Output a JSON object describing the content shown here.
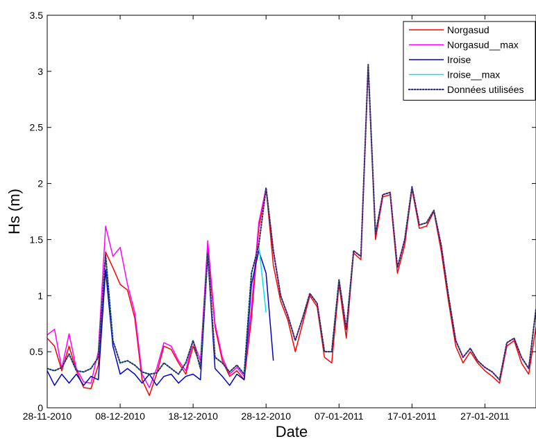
{
  "chart_data": {
    "type": "line",
    "xlabel": "Date",
    "ylabel": "Hs (m)",
    "ylim": [
      0,
      3.5
    ],
    "xlim": [
      "2010-11-28",
      "2011-02-03"
    ],
    "grid": false,
    "legend_position": "top-right",
    "x_ticks": [
      "2010-11-28",
      "2010-12-08",
      "2010-12-18",
      "2010-12-28",
      "2011-01-07",
      "2011-01-17",
      "2011-01-27"
    ],
    "x_tick_labels": [
      "28-11-2010",
      "08-12-2010",
      "18-12-2010",
      "28-12-2010",
      "07-01-2011",
      "17-01-2011",
      "27-01-2011"
    ],
    "y_ticks": [
      0,
      0.5,
      1,
      1.5,
      2,
      2.5,
      3,
      3.5
    ],
    "y_tick_labels": [
      "0",
      "0.5",
      "1",
      "1.5",
      "2",
      "2.5",
      "3",
      "3.5"
    ],
    "series": [
      {
        "name": "Norgasud",
        "color": "#ff0000",
        "style": "solid",
        "points": [
          [
            "2010-11-28",
            0.62
          ],
          [
            "2010-11-29",
            0.55
          ],
          [
            "2010-11-30",
            0.33
          ],
          [
            "2010-12-01",
            0.55
          ],
          [
            "2010-12-02",
            0.33
          ],
          [
            "2010-12-03",
            0.18
          ],
          [
            "2010-12-04",
            0.17
          ],
          [
            "2010-12-05",
            0.38
          ],
          [
            "2010-12-06",
            1.39
          ],
          [
            "2010-12-07",
            1.25
          ],
          [
            "2010-12-08",
            1.1
          ],
          [
            "2010-12-09",
            1.05
          ],
          [
            "2010-12-10",
            0.8
          ],
          [
            "2010-12-11",
            0.25
          ],
          [
            "2010-12-12",
            0.11
          ],
          [
            "2010-12-13",
            0.3
          ],
          [
            "2010-12-14",
            0.55
          ],
          [
            "2010-12-15",
            0.52
          ],
          [
            "2010-12-16",
            0.4
          ],
          [
            "2010-12-17",
            0.3
          ],
          [
            "2010-12-18",
            0.55
          ],
          [
            "2010-12-19",
            0.38
          ],
          [
            "2010-12-20",
            1.42
          ],
          [
            "2010-12-21",
            0.72
          ],
          [
            "2010-12-22",
            0.42
          ],
          [
            "2010-12-23",
            0.28
          ],
          [
            "2010-12-24",
            0.33
          ],
          [
            "2010-12-25",
            0.25
          ],
          [
            "2010-12-26",
            0.8
          ],
          [
            "2010-12-27",
            1.6
          ],
          [
            "2010-12-28",
            1.96
          ],
          [
            "2010-12-29",
            1.27
          ],
          [
            "2010-12-30",
            0.95
          ],
          [
            "2010-12-31",
            0.78
          ],
          [
            "2011-01-01",
            0.5
          ],
          [
            "2011-01-02",
            0.75
          ],
          [
            "2011-01-03",
            1.0
          ],
          [
            "2011-01-04",
            0.9
          ],
          [
            "2011-01-05",
            0.45
          ],
          [
            "2011-01-06",
            0.4
          ],
          [
            "2011-01-07",
            1.1
          ],
          [
            "2011-01-08",
            0.62
          ],
          [
            "2011-01-09",
            1.38
          ],
          [
            "2011-01-10",
            1.32
          ],
          [
            "2011-01-11",
            3.05
          ],
          [
            "2011-01-12",
            1.5
          ],
          [
            "2011-01-13",
            1.88
          ],
          [
            "2011-01-14",
            1.9
          ],
          [
            "2011-01-15",
            1.2
          ],
          [
            "2011-01-16",
            1.45
          ],
          [
            "2011-01-17",
            1.95
          ],
          [
            "2011-01-18",
            1.6
          ],
          [
            "2011-01-19",
            1.62
          ],
          [
            "2011-01-20",
            1.75
          ],
          [
            "2011-01-21",
            1.4
          ],
          [
            "2011-01-22",
            0.95
          ],
          [
            "2011-01-23",
            0.55
          ],
          [
            "2011-01-24",
            0.4
          ],
          [
            "2011-01-25",
            0.5
          ],
          [
            "2011-01-26",
            0.4
          ],
          [
            "2011-01-27",
            0.33
          ],
          [
            "2011-01-28",
            0.28
          ],
          [
            "2011-01-29",
            0.22
          ],
          [
            "2011-01-30",
            0.55
          ],
          [
            "2011-01-31",
            0.6
          ],
          [
            "2011-02-01",
            0.4
          ],
          [
            "2011-02-02",
            0.3
          ],
          [
            "2011-02-03",
            0.72
          ]
        ]
      },
      {
        "name": "Norgasud__max",
        "color": "#ff00ff",
        "style": "solid",
        "points": [
          [
            "2010-11-28",
            0.65
          ],
          [
            "2010-11-29",
            0.7
          ],
          [
            "2010-11-30",
            0.35
          ],
          [
            "2010-12-01",
            0.66
          ],
          [
            "2010-12-02",
            0.35
          ],
          [
            "2010-12-03",
            0.23
          ],
          [
            "2010-12-04",
            0.22
          ],
          [
            "2010-12-05",
            0.5
          ],
          [
            "2010-12-06",
            1.62
          ],
          [
            "2010-12-07",
            1.35
          ],
          [
            "2010-12-08",
            1.43
          ],
          [
            "2010-12-09",
            1.1
          ],
          [
            "2010-12-10",
            0.85
          ],
          [
            "2010-12-11",
            0.3
          ],
          [
            "2010-12-12",
            0.18
          ],
          [
            "2010-12-13",
            0.35
          ],
          [
            "2010-12-14",
            0.58
          ],
          [
            "2010-12-15",
            0.55
          ],
          [
            "2010-12-16",
            0.42
          ],
          [
            "2010-12-17",
            0.33
          ],
          [
            "2010-12-18",
            0.6
          ],
          [
            "2010-12-19",
            0.42
          ],
          [
            "2010-12-20",
            1.49
          ],
          [
            "2010-12-21",
            0.75
          ],
          [
            "2010-12-22",
            0.45
          ],
          [
            "2010-12-23",
            0.3
          ],
          [
            "2010-12-24",
            0.36
          ],
          [
            "2010-12-25",
            0.28
          ],
          [
            "2010-12-26",
            0.9
          ],
          [
            "2010-12-27",
            1.65
          ],
          [
            "2010-12-28",
            1.96
          ],
          [
            "2010-12-29",
            1.4
          ],
          [
            "2010-12-30",
            1.0
          ],
          [
            "2010-12-31",
            0.82
          ],
          [
            "2011-01-01",
            0.6
          ],
          [
            "2011-01-02",
            0.8
          ],
          [
            "2011-01-03",
            1.02
          ],
          [
            "2011-01-04",
            0.93
          ],
          [
            "2011-01-05",
            0.5
          ],
          [
            "2011-01-06",
            0.5
          ],
          [
            "2011-01-07",
            1.14
          ],
          [
            "2011-01-08",
            0.7
          ],
          [
            "2011-01-09",
            1.4
          ],
          [
            "2011-01-10",
            1.35
          ],
          [
            "2011-01-11",
            3.06
          ],
          [
            "2011-01-12",
            1.55
          ],
          [
            "2011-01-13",
            1.9
          ],
          [
            "2011-01-14",
            1.92
          ],
          [
            "2011-01-15",
            1.25
          ],
          [
            "2011-01-16",
            1.5
          ],
          [
            "2011-01-17",
            1.97
          ],
          [
            "2011-01-18",
            1.63
          ],
          [
            "2011-01-19",
            1.65
          ],
          [
            "2011-01-20",
            1.76
          ],
          [
            "2011-01-21",
            1.45
          ],
          [
            "2011-01-22",
            1.0
          ],
          [
            "2011-01-23",
            0.6
          ],
          [
            "2011-01-24",
            0.45
          ],
          [
            "2011-01-25",
            0.53
          ],
          [
            "2011-01-26",
            0.42
          ],
          [
            "2011-01-27",
            0.36
          ],
          [
            "2011-01-28",
            0.32
          ],
          [
            "2011-01-29",
            0.25
          ],
          [
            "2011-01-30",
            0.58
          ],
          [
            "2011-01-31",
            0.62
          ],
          [
            "2011-02-01",
            0.45
          ],
          [
            "2011-02-02",
            0.35
          ],
          [
            "2011-02-03",
            0.88
          ]
        ]
      },
      {
        "name": "Iroise",
        "color": "#0000cc",
        "style": "solid",
        "points": [
          [
            "2010-11-28",
            0.33
          ],
          [
            "2010-11-29",
            0.2
          ],
          [
            "2010-11-30",
            0.3
          ],
          [
            "2010-12-01",
            0.22
          ],
          [
            "2010-12-02",
            0.3
          ],
          [
            "2010-12-03",
            0.2
          ],
          [
            "2010-12-04",
            0.28
          ],
          [
            "2010-12-05",
            0.25
          ],
          [
            "2010-12-06",
            1.23
          ],
          [
            "2010-12-07",
            0.55
          ],
          [
            "2010-12-08",
            0.3
          ],
          [
            "2010-12-09",
            0.35
          ],
          [
            "2010-12-10",
            0.3
          ],
          [
            "2010-12-11",
            0.22
          ],
          [
            "2010-12-12",
            0.3
          ],
          [
            "2010-12-13",
            0.2
          ],
          [
            "2010-12-14",
            0.28
          ],
          [
            "2010-12-15",
            0.3
          ],
          [
            "2010-12-16",
            0.22
          ],
          [
            "2010-12-17",
            0.28
          ],
          [
            "2010-12-18",
            0.3
          ],
          [
            "2010-12-19",
            0.25
          ],
          [
            "2010-12-20",
            1.36
          ],
          [
            "2010-12-21",
            0.35
          ],
          [
            "2010-12-22",
            0.28
          ],
          [
            "2010-12-23",
            0.2
          ],
          [
            "2010-12-24",
            0.3
          ],
          [
            "2010-12-25",
            0.25
          ],
          [
            "2010-12-26",
            1.1
          ],
          [
            "2010-12-27",
            1.4
          ],
          [
            "2010-12-28",
            1.2
          ],
          [
            "2010-12-29",
            0.42
          ]
        ]
      },
      {
        "name": "Iroise__max",
        "color": "#00e5ee",
        "style": "solid",
        "points": [
          [
            "2010-11-28",
            0.35
          ],
          [
            "2010-11-29",
            0.33
          ],
          [
            "2010-11-30",
            0.36
          ],
          [
            "2010-12-01",
            0.48
          ],
          [
            "2010-12-02",
            0.33
          ],
          [
            "2010-12-03",
            0.32
          ],
          [
            "2010-12-04",
            0.35
          ],
          [
            "2010-12-05",
            0.45
          ],
          [
            "2010-12-06",
            1.36
          ],
          [
            "2010-12-07",
            0.6
          ],
          [
            "2010-12-08",
            0.4
          ],
          [
            "2010-12-09",
            0.42
          ],
          [
            "2010-12-10",
            0.38
          ],
          [
            "2010-12-11",
            0.32
          ],
          [
            "2010-12-12",
            0.3
          ],
          [
            "2010-12-13",
            0.31
          ],
          [
            "2010-12-14",
            0.4
          ],
          [
            "2010-12-15",
            0.35
          ],
          [
            "2010-12-16",
            0.3
          ],
          [
            "2010-12-17",
            0.4
          ],
          [
            "2010-12-18",
            0.6
          ],
          [
            "2010-12-19",
            0.35
          ],
          [
            "2010-12-20",
            1.37
          ],
          [
            "2010-12-21",
            0.45
          ],
          [
            "2010-12-22",
            0.4
          ],
          [
            "2010-12-23",
            0.32
          ],
          [
            "2010-12-24",
            0.38
          ],
          [
            "2010-12-25",
            0.3
          ],
          [
            "2010-12-26",
            1.2
          ],
          [
            "2010-12-27",
            1.45
          ],
          [
            "2010-12-28",
            0.85
          ]
        ]
      },
      {
        "name": "Données utilisées",
        "color": "#333366",
        "style": "dotted",
        "points": [
          [
            "2010-11-28",
            0.35
          ],
          [
            "2010-11-29",
            0.33
          ],
          [
            "2010-11-30",
            0.36
          ],
          [
            "2010-12-01",
            0.48
          ],
          [
            "2010-12-02",
            0.33
          ],
          [
            "2010-12-03",
            0.32
          ],
          [
            "2010-12-04",
            0.35
          ],
          [
            "2010-12-05",
            0.45
          ],
          [
            "2010-12-06",
            1.36
          ],
          [
            "2010-12-07",
            0.6
          ],
          [
            "2010-12-08",
            0.4
          ],
          [
            "2010-12-09",
            0.42
          ],
          [
            "2010-12-10",
            0.38
          ],
          [
            "2010-12-11",
            0.32
          ],
          [
            "2010-12-12",
            0.3
          ],
          [
            "2010-12-13",
            0.31
          ],
          [
            "2010-12-14",
            0.4
          ],
          [
            "2010-12-15",
            0.35
          ],
          [
            "2010-12-16",
            0.3
          ],
          [
            "2010-12-17",
            0.4
          ],
          [
            "2010-12-18",
            0.6
          ],
          [
            "2010-12-19",
            0.35
          ],
          [
            "2010-12-20",
            1.37
          ],
          [
            "2010-12-21",
            0.45
          ],
          [
            "2010-12-22",
            0.4
          ],
          [
            "2010-12-23",
            0.32
          ],
          [
            "2010-12-24",
            0.38
          ],
          [
            "2010-12-25",
            0.3
          ],
          [
            "2010-12-26",
            1.2
          ],
          [
            "2010-12-27",
            1.45
          ],
          [
            "2010-12-28",
            1.96
          ],
          [
            "2010-12-29",
            1.4
          ],
          [
            "2010-12-30",
            1.0
          ],
          [
            "2010-12-31",
            0.82
          ],
          [
            "2011-01-01",
            0.6
          ],
          [
            "2011-01-02",
            0.8
          ],
          [
            "2011-01-03",
            1.02
          ],
          [
            "2011-01-04",
            0.93
          ],
          [
            "2011-01-05",
            0.5
          ],
          [
            "2011-01-06",
            0.5
          ],
          [
            "2011-01-07",
            1.14
          ],
          [
            "2011-01-08",
            0.7
          ],
          [
            "2011-01-09",
            1.4
          ],
          [
            "2011-01-10",
            1.35
          ],
          [
            "2011-01-11",
            3.06
          ],
          [
            "2011-01-12",
            1.55
          ],
          [
            "2011-01-13",
            1.9
          ],
          [
            "2011-01-14",
            1.92
          ],
          [
            "2011-01-15",
            1.25
          ],
          [
            "2011-01-16",
            1.5
          ],
          [
            "2011-01-17",
            1.97
          ],
          [
            "2011-01-18",
            1.63
          ],
          [
            "2011-01-19",
            1.65
          ],
          [
            "2011-01-20",
            1.76
          ],
          [
            "2011-01-21",
            1.45
          ],
          [
            "2011-01-22",
            1.0
          ],
          [
            "2011-01-23",
            0.6
          ],
          [
            "2011-01-24",
            0.45
          ],
          [
            "2011-01-25",
            0.53
          ],
          [
            "2011-01-26",
            0.42
          ],
          [
            "2011-01-27",
            0.36
          ],
          [
            "2011-01-28",
            0.32
          ],
          [
            "2011-01-29",
            0.25
          ],
          [
            "2011-01-30",
            0.58
          ],
          [
            "2011-01-31",
            0.62
          ],
          [
            "2011-02-01",
            0.45
          ],
          [
            "2011-02-02",
            0.35
          ],
          [
            "2011-02-03",
            0.88
          ]
        ]
      }
    ]
  }
}
